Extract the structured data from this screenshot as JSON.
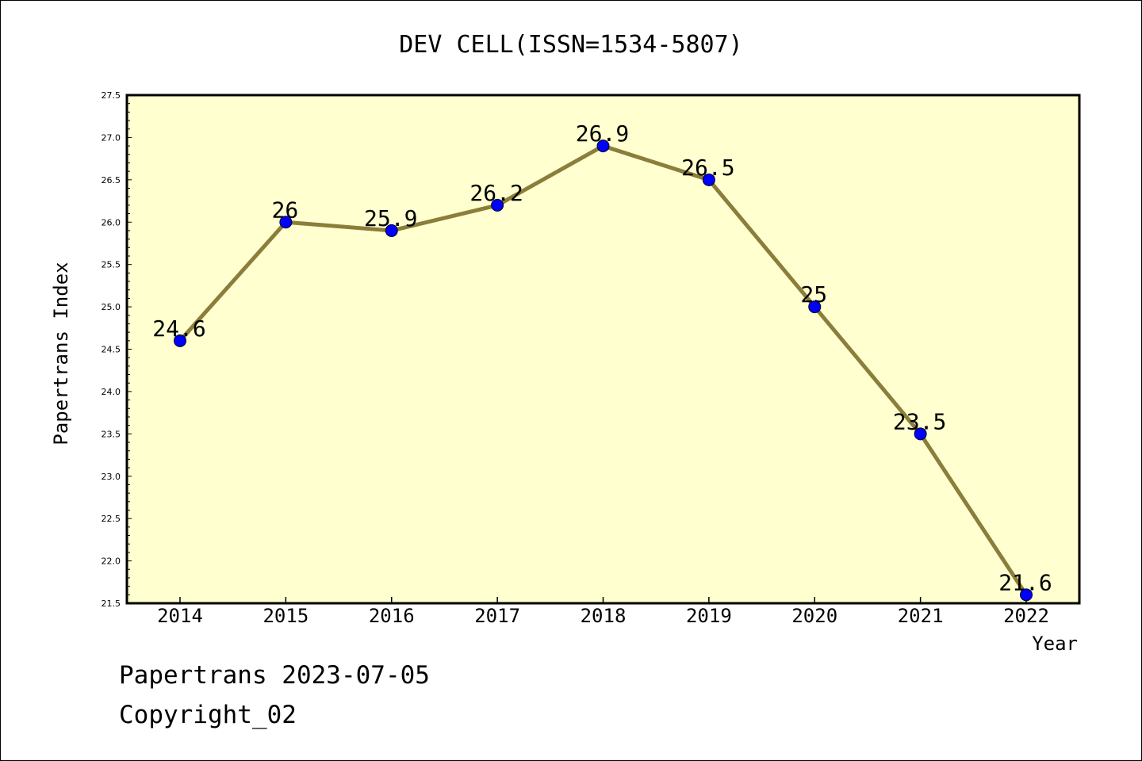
{
  "chart_data": {
    "type": "line",
    "title": "DEV CELL(ISSN=1534-5807)",
    "xlabel": "Year",
    "ylabel": "Papertrans Index",
    "categories": [
      "2014",
      "2015",
      "2016",
      "2017",
      "2018",
      "2019",
      "2020",
      "2021",
      "2022"
    ],
    "series": [
      {
        "values": [
          24.6,
          26,
          25.9,
          26.2,
          26.9,
          26.5,
          25,
          23.5,
          21.6
        ]
      }
    ],
    "data_labels": [
      "24.6",
      "26",
      "25.9",
      "26.2",
      "26.9",
      "26.5",
      "25",
      "23.5",
      "21.6"
    ],
    "ylim": [
      21.5,
      27.5
    ],
    "yticks": [
      "21.5",
      "22.0",
      "22.5",
      "23.0",
      "23.5",
      "24.0",
      "24.5",
      "25.0",
      "25.5",
      "26.0",
      "26.5",
      "27.0",
      "27.5"
    ],
    "grid": false,
    "legend": "none",
    "colors": {
      "plot_background": "#ffffd0",
      "line": "#8b7d3a",
      "marker": "#0000ff",
      "axis": "#000000"
    }
  },
  "footer": {
    "date_line": "Papertrans 2023-07-05",
    "copyright": "Copyright_02"
  }
}
